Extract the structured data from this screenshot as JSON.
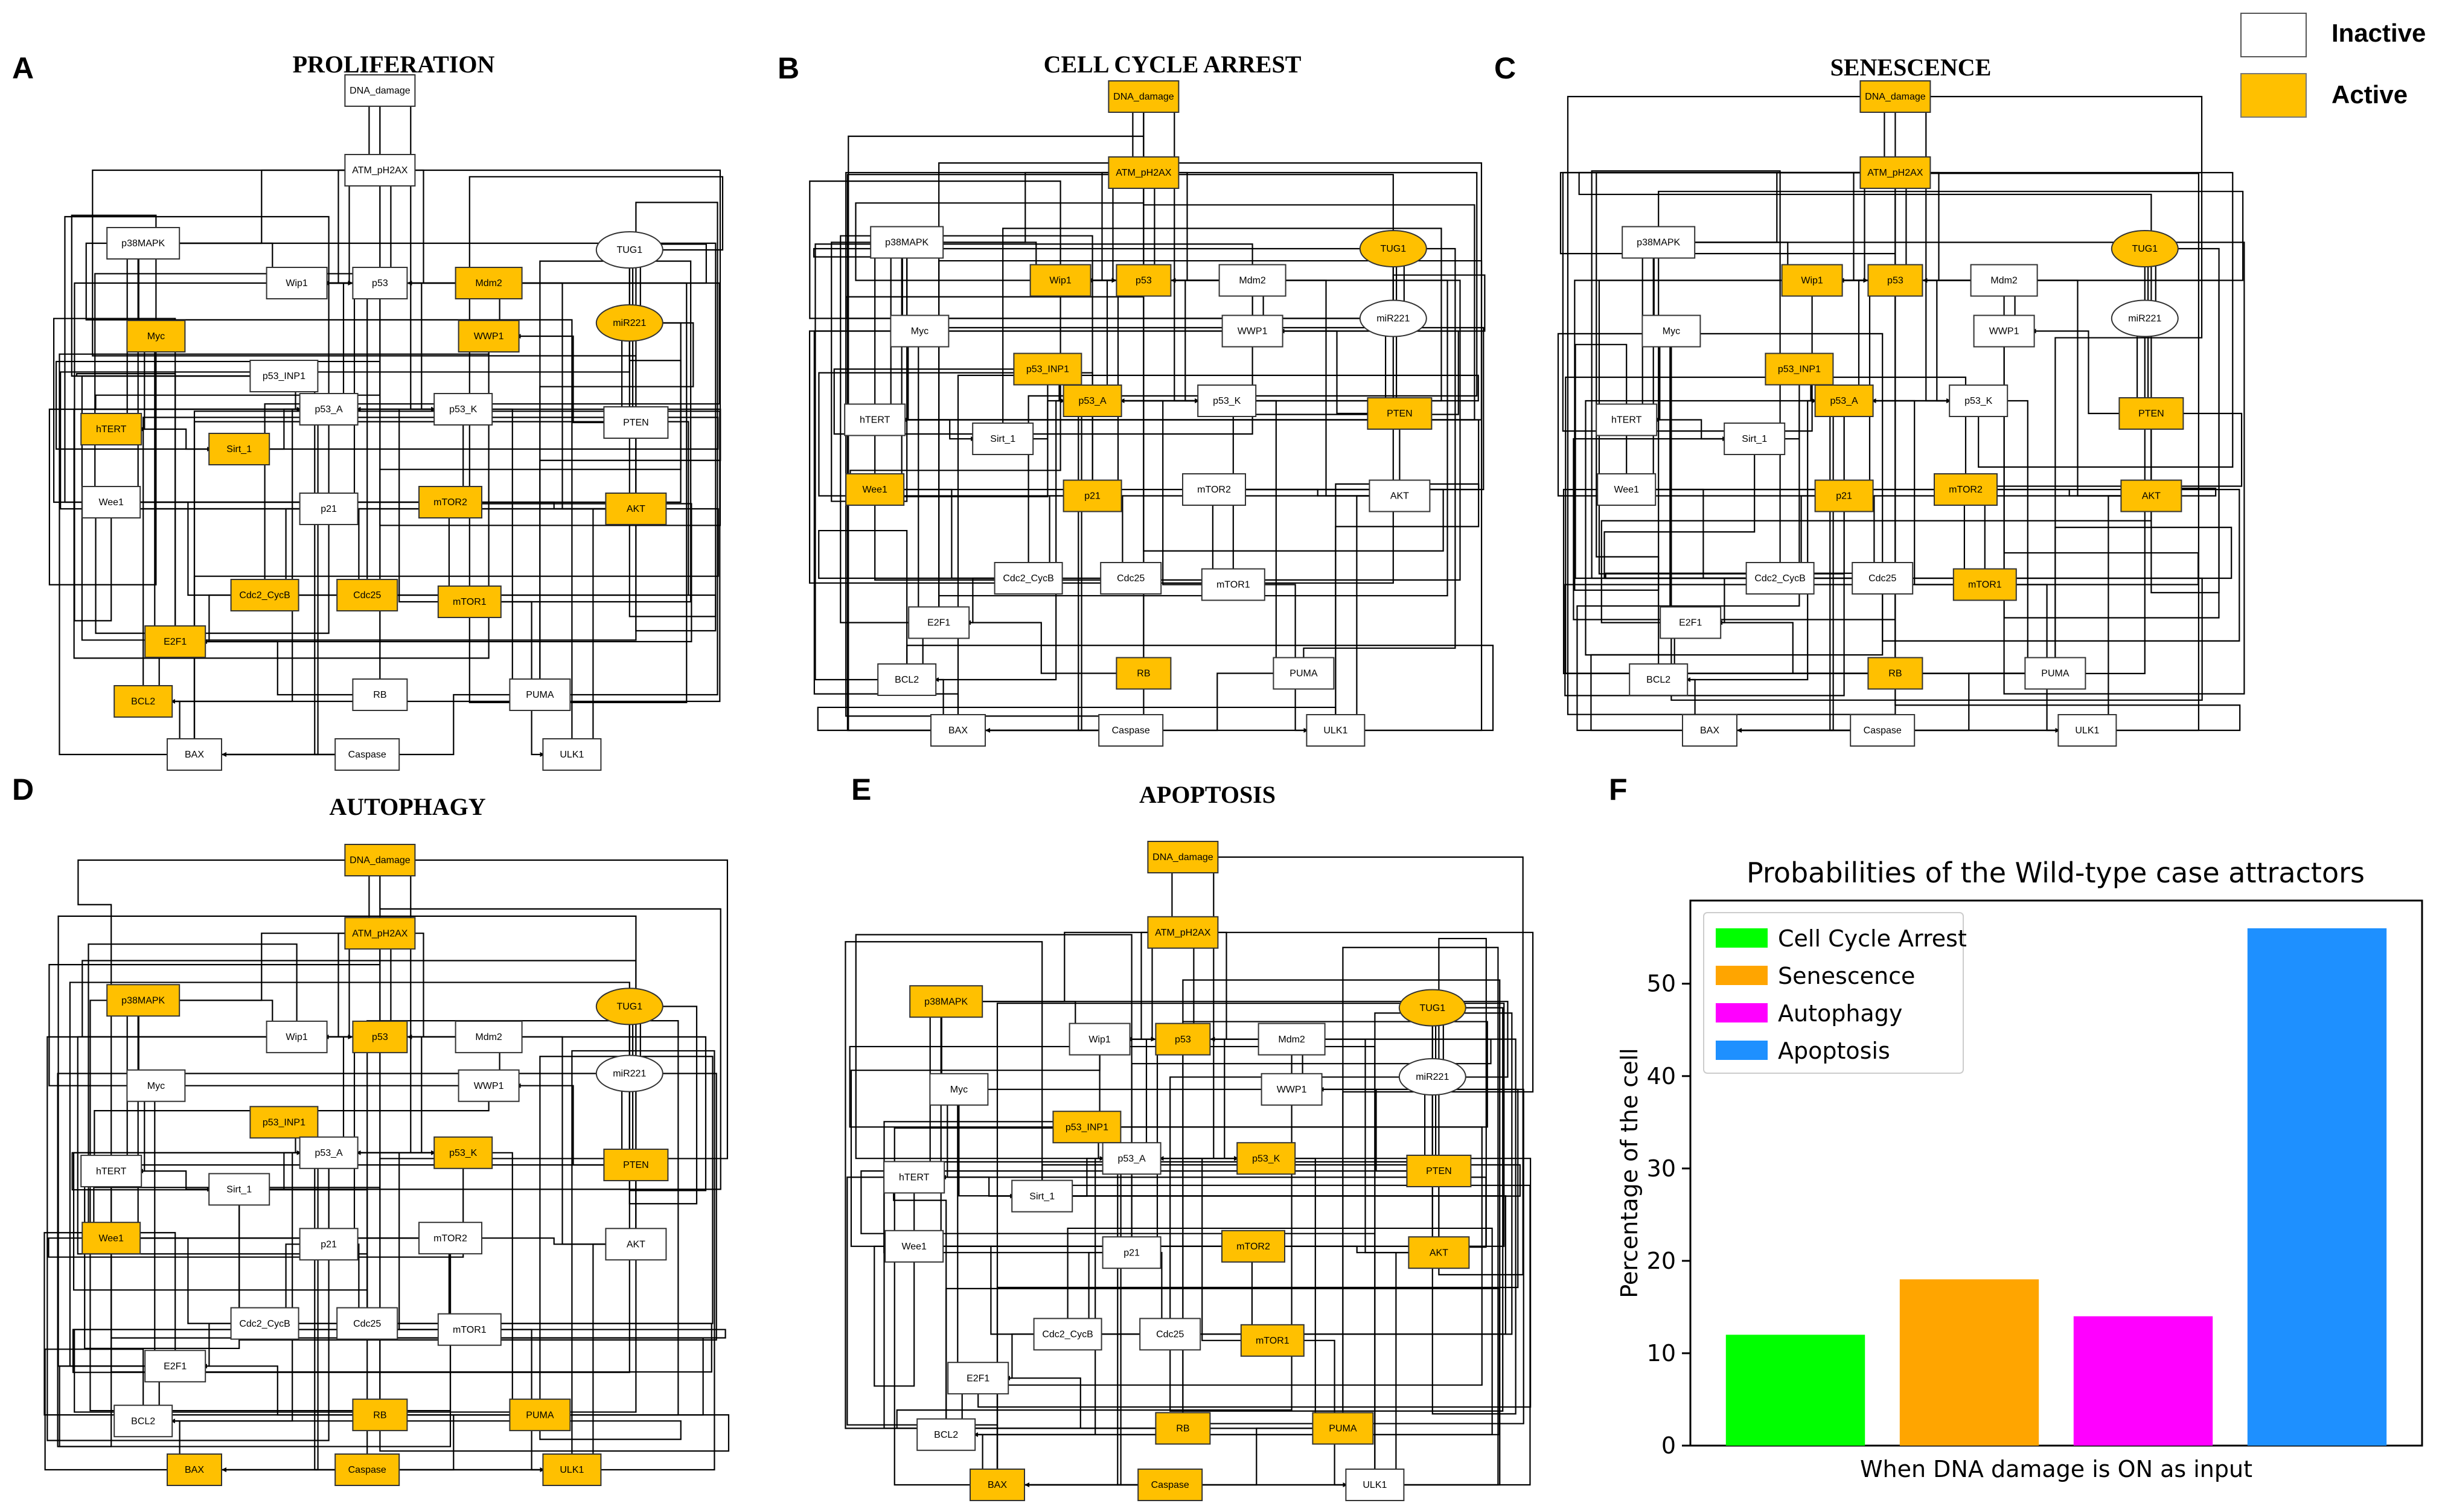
{
  "legend": {
    "inactive_label": "Inactive",
    "active_label": "Active",
    "inactive_color": "#ffffff",
    "active_color": "#ffc000"
  },
  "panels": [
    {
      "label": "A",
      "title": "PROLIFERATION",
      "active": [
        "Mdm2",
        "Myc",
        "WWP1",
        "miR221",
        "hTERT",
        "Sirt_1",
        "mTOR2",
        "AKT",
        "Cdc2_CycB",
        "Cdc25",
        "mTOR1",
        "E2F1",
        "BCL2"
      ]
    },
    {
      "label": "B",
      "title": "CELL CYCLE ARREST",
      "active": [
        "DNA_damage",
        "ATM_pH2AX",
        "Wip1",
        "p53",
        "TUG1",
        "p53_INP1",
        "p53_A",
        "PTEN",
        "Wee1",
        "p21",
        "RB"
      ]
    },
    {
      "label": "C",
      "title": "SENESCENCE",
      "active": [
        "DNA_damage",
        "ATM_pH2AX",
        "Wip1",
        "p53",
        "TUG1",
        "p53_INP1",
        "p53_A",
        "PTEN",
        "p21",
        "mTOR2",
        "AKT",
        "mTOR1",
        "RB"
      ]
    },
    {
      "label": "D",
      "title": "AUTOPHAGY",
      "active": [
        "DNA_damage",
        "ATM_pH2AX",
        "p38MAPK",
        "p53",
        "TUG1",
        "p53_INP1",
        "p53_K",
        "PTEN",
        "Wee1",
        "RB",
        "PUMA",
        "BAX",
        "Caspase",
        "ULK1"
      ]
    },
    {
      "label": "E",
      "title": "APOPTOSIS",
      "active": [
        "DNA_damage",
        "ATM_pH2AX",
        "p38MAPK",
        "p53",
        "TUG1",
        "p53_INP1",
        "p53_K",
        "PTEN",
        "mTOR2",
        "AKT",
        "mTOR1",
        "RB",
        "PUMA",
        "BAX",
        "Caspase"
      ]
    }
  ],
  "chart_panel_label": "F",
  "chart_data": {
    "type": "bar",
    "title": "Probabilities of the Wild-type case attractors",
    "xlabel": "When DNA damage is ON as input",
    "ylabel": "Percentage of the cell",
    "categories": [
      "Cell Cycle Arrest",
      "Senescence",
      "Autophagy",
      "Apoptosis"
    ],
    "values": [
      12,
      18,
      14,
      56
    ],
    "colors": [
      "#00ff00",
      "#ffa500",
      "#ff00ff",
      "#1e90ff"
    ],
    "yticks": [
      0,
      10,
      20,
      30,
      40,
      50
    ],
    "ylim": [
      0,
      59
    ],
    "legend_position": "top-left"
  }
}
